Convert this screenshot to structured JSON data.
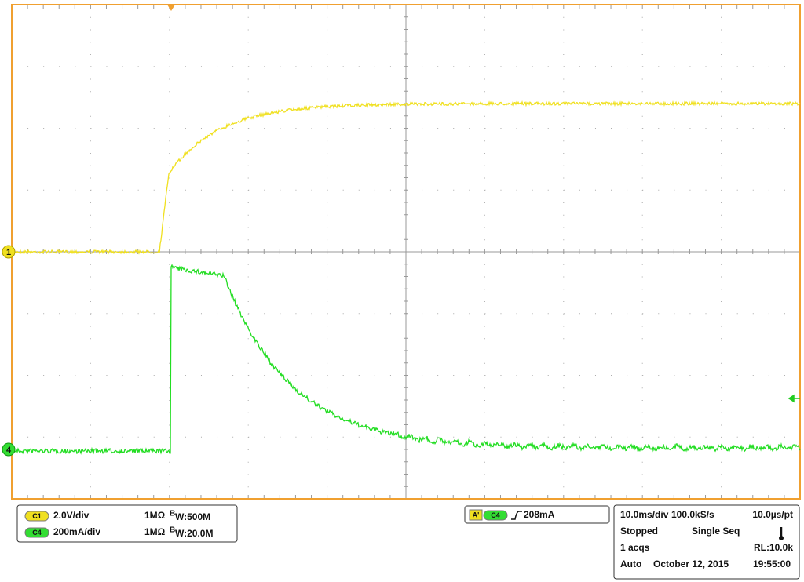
{
  "markers": {
    "ch1": "1",
    "ch4": "4"
  },
  "channels": [
    {
      "badge": "C1",
      "scale": "2.0V/div",
      "impedance": "1MΩ",
      "bw_prefix": "B",
      "bw": "W:500M"
    },
    {
      "badge": "C4",
      "scale": "200mA/div",
      "impedance": "1MΩ",
      "bw_prefix": "B",
      "bw": "W:20.0M"
    }
  ],
  "trigger": {
    "badge": "A'",
    "source": "C4",
    "level": "208mA"
  },
  "acquisition": {
    "timebase": "10.0ms/div",
    "sample_rate": "100.0kS/s",
    "resolution": "10.0µs/pt",
    "state": "Stopped",
    "mode": "Single Seq",
    "acqs": "1 acqs",
    "record_length": "RL:10.0k",
    "trigger_mode": "Auto",
    "date": "October 12, 2015",
    "time": "19:55:00"
  }
}
